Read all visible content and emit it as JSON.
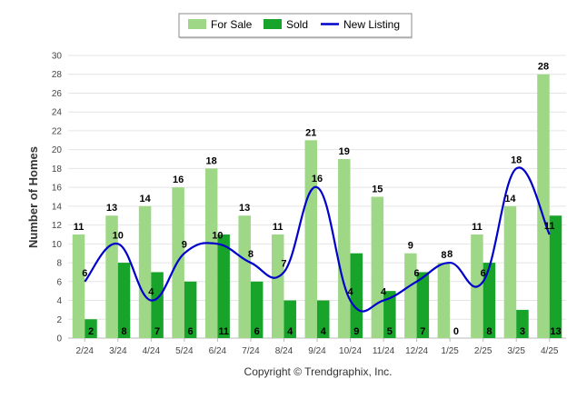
{
  "chart_data": {
    "type": "bar",
    "categories": [
      "2/24",
      "3/24",
      "4/24",
      "5/24",
      "6/24",
      "7/24",
      "8/24",
      "9/24",
      "10/24",
      "11/24",
      "12/24",
      "1/25",
      "2/25",
      "3/25",
      "4/25"
    ],
    "series": [
      {
        "name": "For Sale",
        "type": "bar",
        "color": "#9ed887",
        "values": [
          11,
          13,
          14,
          16,
          18,
          13,
          11,
          21,
          19,
          15,
          9,
          8,
          11,
          14,
          28
        ]
      },
      {
        "name": "Sold",
        "type": "bar",
        "color": "#18a42a",
        "values": [
          2,
          8,
          7,
          6,
          11,
          6,
          4,
          4,
          9,
          5,
          7,
          0,
          8,
          3,
          13
        ]
      },
      {
        "name": "New Listing",
        "type": "line",
        "color": "#0000cc",
        "values": [
          6,
          10,
          4,
          9,
          10,
          8,
          7,
          16,
          4,
          4,
          6,
          8,
          6,
          18,
          11
        ]
      }
    ],
    "ylabel": "Number of Homes",
    "ylim": [
      0,
      30
    ],
    "yticks": [
      0,
      2,
      4,
      6,
      8,
      10,
      12,
      14,
      16,
      18,
      20,
      22,
      24,
      26,
      28,
      30
    ],
    "grid": true,
    "legend": "top-center",
    "footer": "Copyright © Trendgraphix, Inc."
  }
}
